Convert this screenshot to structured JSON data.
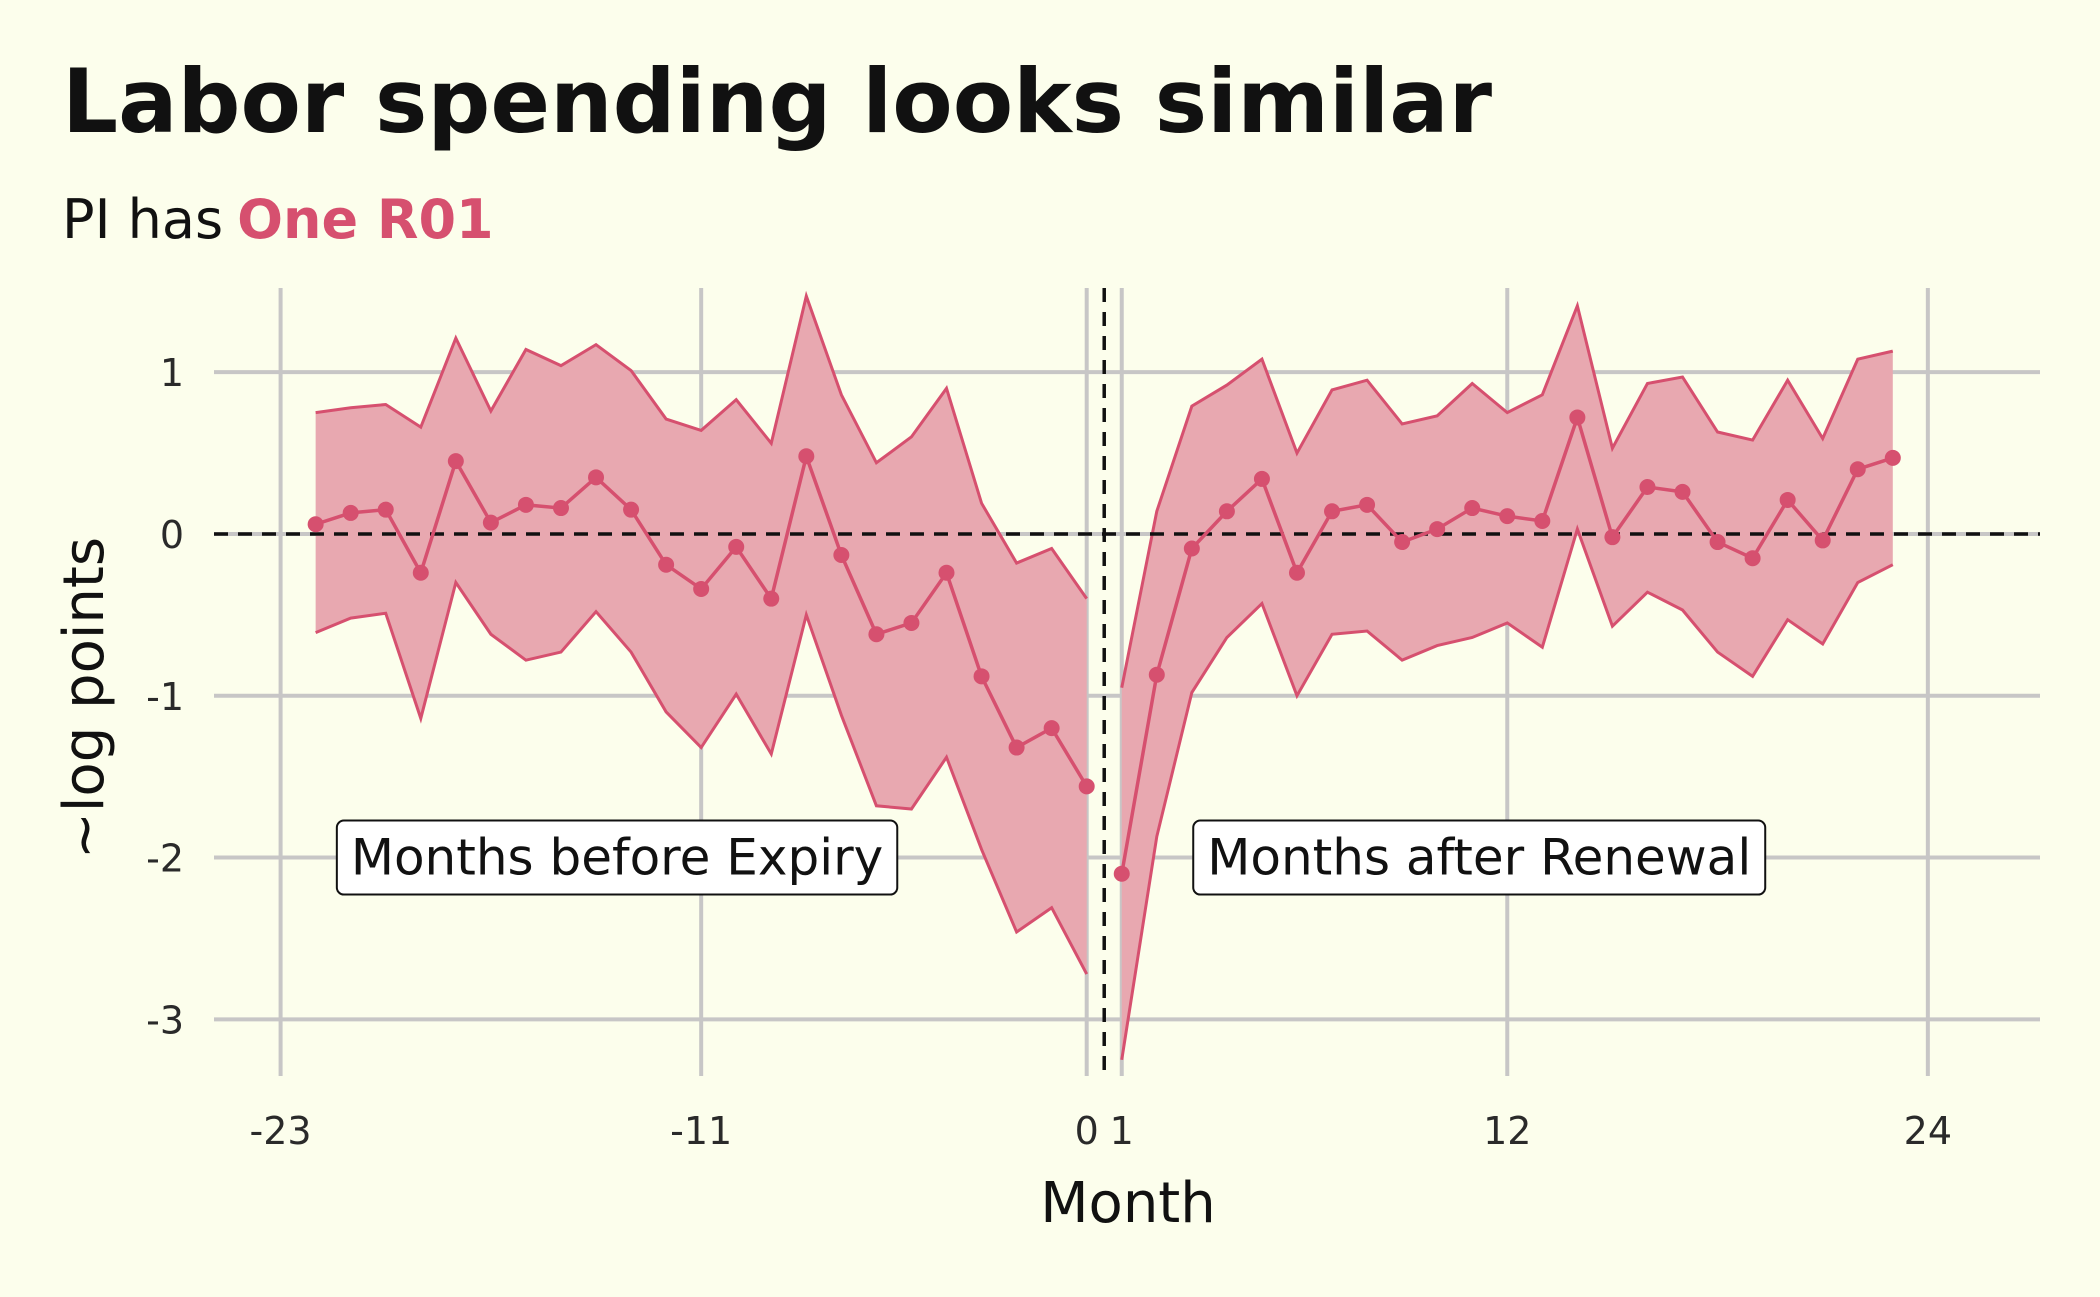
{
  "title": "Labor spending looks similar",
  "subtitle": {
    "prefix": "PI has",
    "highlight": "One R01"
  },
  "colors": {
    "background": "#fcfeec",
    "series": "#d6506f",
    "band_fill": "#e8a8b0",
    "grid": "#c7c6c6",
    "reference": "#111111"
  },
  "chart_data": {
    "type": "line",
    "xlabel": "Month",
    "ylabel": "~log points",
    "xlim": [
      -24.9,
      27.2
    ],
    "ylim": [
      -3.35,
      1.52
    ],
    "xticks": [
      -23,
      -11,
      0,
      1,
      12,
      24
    ],
    "xtick_labels": [
      "-23",
      "-11",
      "0",
      "1",
      "12",
      "24"
    ],
    "yticks": [
      1,
      0,
      -1,
      -2,
      -3
    ],
    "ytick_labels": [
      "1",
      "0",
      "-1",
      "-2",
      "-3"
    ],
    "grid": true,
    "reference_lines": {
      "horizontal": 0,
      "vertical": 0.5
    },
    "annotations": [
      {
        "text": "Months before Expiry",
        "x": -13.4,
        "y": -2.0
      },
      {
        "text": "Months after Renewal",
        "x": 11.2,
        "y": -2.0
      }
    ],
    "series": [
      {
        "segment": "before",
        "x": [
          -22,
          -21,
          -20,
          -19,
          -18,
          -17,
          -16,
          -15,
          -14,
          -13,
          -12,
          -11,
          -10,
          -9,
          -8,
          -7,
          -6,
          -5,
          -4,
          -3,
          -2,
          -1,
          0
        ],
        "y": [
          0.06,
          0.13,
          0.15,
          -0.24,
          0.45,
          0.07,
          0.18,
          0.16,
          0.35,
          0.15,
          -0.19,
          -0.34,
          -0.08,
          -0.4,
          0.48,
          -0.13,
          -0.62,
          -0.55,
          -0.24,
          -0.88,
          -1.32,
          -1.2,
          -1.56
        ],
        "lower": [
          -0.61,
          -0.52,
          -0.49,
          -1.14,
          -0.3,
          -0.62,
          -0.78,
          -0.73,
          -0.48,
          -0.73,
          -1.1,
          -1.32,
          -0.99,
          -1.36,
          -0.5,
          -1.12,
          -1.68,
          -1.7,
          -1.38,
          -1.95,
          -2.46,
          -2.31,
          -2.72
        ],
        "upper": [
          0.75,
          0.78,
          0.8,
          0.66,
          1.21,
          0.76,
          1.14,
          1.04,
          1.17,
          1.01,
          0.71,
          0.64,
          0.83,
          0.56,
          1.47,
          0.86,
          0.44,
          0.6,
          0.9,
          0.19,
          -0.18,
          -0.09,
          -0.4
        ]
      },
      {
        "segment": "after",
        "x": [
          1,
          2,
          3,
          4,
          5,
          6,
          7,
          8,
          9,
          10,
          11,
          12,
          13,
          14,
          15,
          16,
          17,
          18,
          19,
          20,
          21,
          22,
          23
        ],
        "y": [
          -2.1,
          -0.87,
          -0.09,
          0.14,
          0.34,
          -0.24,
          0.14,
          0.18,
          -0.05,
          0.03,
          0.16,
          0.11,
          0.08,
          0.72,
          -0.02,
          0.29,
          0.26,
          -0.05,
          -0.15,
          0.21,
          -0.04,
          0.4,
          0.47
        ],
        "lower": [
          -3.25,
          -1.87,
          -0.98,
          -0.64,
          -0.43,
          -1.0,
          -0.62,
          -0.6,
          -0.78,
          -0.69,
          -0.64,
          -0.55,
          -0.7,
          0.03,
          -0.57,
          -0.36,
          -0.47,
          -0.73,
          -0.88,
          -0.53,
          -0.68,
          -0.3,
          -0.19
        ],
        "upper": [
          -0.95,
          0.14,
          0.79,
          0.92,
          1.08,
          0.5,
          0.89,
          0.95,
          0.68,
          0.73,
          0.93,
          0.75,
          0.86,
          1.41,
          0.53,
          0.93,
          0.97,
          0.63,
          0.58,
          0.95,
          0.59,
          1.08,
          1.13
        ]
      }
    ]
  }
}
